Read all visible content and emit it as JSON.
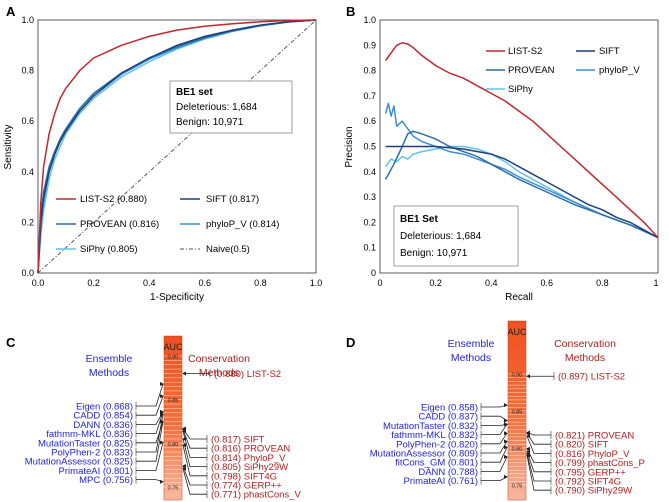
{
  "chart_data": [
    {
      "id": "A",
      "panel_label": "A",
      "type": "line",
      "title": "",
      "xlabel": "1-Specificity",
      "ylabel": "Sensitivity",
      "xlim": [
        0,
        1
      ],
      "ylim": [
        0,
        1
      ],
      "xticks": [
        "0.0",
        "0.2",
        "0.4",
        "0.6",
        "0.8",
        "1.0"
      ],
      "yticks": [
        "0.0",
        "0.2",
        "0.4",
        "0.6",
        "0.8",
        "1.0"
      ],
      "grid": false,
      "infobox": {
        "title": "BE1 set",
        "line1": "Deleterious: 1,684",
        "line2": "Benign: 10,971"
      },
      "series": [
        {
          "name": "LIST-S2 (0.880)",
          "color": "#c0282d",
          "dash": "",
          "x": [
            0,
            0.01,
            0.02,
            0.04,
            0.06,
            0.08,
            0.1,
            0.15,
            0.2,
            0.3,
            0.4,
            0.5,
            0.6,
            0.7,
            0.8,
            0.9,
            1.0
          ],
          "y": [
            0,
            0.28,
            0.42,
            0.55,
            0.63,
            0.69,
            0.73,
            0.8,
            0.85,
            0.9,
            0.935,
            0.96,
            0.975,
            0.985,
            0.993,
            0.998,
            1.0
          ]
        },
        {
          "name": "SIFT (0.817)",
          "color": "#1f3f7a",
          "dash": "",
          "x": [
            0,
            0.01,
            0.02,
            0.04,
            0.06,
            0.08,
            0.1,
            0.15,
            0.2,
            0.3,
            0.4,
            0.5,
            0.6,
            0.7,
            0.8,
            0.9,
            1.0
          ],
          "y": [
            0,
            0.2,
            0.3,
            0.4,
            0.47,
            0.52,
            0.56,
            0.64,
            0.7,
            0.79,
            0.85,
            0.9,
            0.935,
            0.96,
            0.98,
            0.993,
            1.0
          ]
        },
        {
          "name": "PROVEAN (0.816)",
          "color": "#2e6da4",
          "dash": "",
          "x": [
            0,
            0.01,
            0.02,
            0.04,
            0.06,
            0.08,
            0.1,
            0.15,
            0.2,
            0.3,
            0.4,
            0.5,
            0.6,
            0.7,
            0.8,
            0.9,
            1.0
          ],
          "y": [
            0,
            0.22,
            0.32,
            0.42,
            0.48,
            0.53,
            0.57,
            0.65,
            0.71,
            0.79,
            0.85,
            0.895,
            0.93,
            0.958,
            0.978,
            0.992,
            1.0
          ]
        },
        {
          "name": "phyloP_V (0.814)",
          "color": "#3a8fd8",
          "dash": "",
          "x": [
            0,
            0.01,
            0.02,
            0.04,
            0.06,
            0.08,
            0.1,
            0.15,
            0.2,
            0.3,
            0.4,
            0.5,
            0.6,
            0.7,
            0.8,
            0.9,
            1.0
          ],
          "y": [
            0,
            0.18,
            0.28,
            0.4,
            0.47,
            0.52,
            0.56,
            0.64,
            0.7,
            0.785,
            0.845,
            0.89,
            0.928,
            0.956,
            0.977,
            0.992,
            1.0
          ]
        },
        {
          "name": "SiPhy (0.805)",
          "color": "#62c3ea",
          "dash": "",
          "x": [
            0,
            0.01,
            0.02,
            0.04,
            0.06,
            0.08,
            0.1,
            0.15,
            0.2,
            0.3,
            0.4,
            0.5,
            0.6,
            0.7,
            0.8,
            0.9,
            1.0
          ],
          "y": [
            0,
            0.15,
            0.25,
            0.37,
            0.45,
            0.5,
            0.55,
            0.63,
            0.69,
            0.775,
            0.835,
            0.885,
            0.925,
            0.955,
            0.977,
            0.992,
            1.0
          ]
        },
        {
          "name": "Naive(0.5)",
          "color": "#555555",
          "dash": "4,2,1,2",
          "x": [
            0,
            1
          ],
          "y": [
            0,
            1
          ]
        }
      ]
    },
    {
      "id": "B",
      "panel_label": "B",
      "type": "line",
      "title": "",
      "xlabel": "Recall",
      "ylabel": "Precision",
      "xlim": [
        0,
        1
      ],
      "ylim": [
        0,
        1
      ],
      "xticks": [
        "0",
        "0.2",
        "0.4",
        "0.6",
        "0.8",
        "1"
      ],
      "yticks": [
        "0",
        "0.1",
        "0.2",
        "0.3",
        "0.4",
        "0.5",
        "0.6",
        "0.7",
        "0.8",
        "0.9",
        "1.0"
      ],
      "grid": false,
      "infobox": {
        "title": "BE1 Set",
        "line1": "Deleterious: 1,684",
        "line2": "Benign: 10,971"
      },
      "series": [
        {
          "name": "LIST-S2",
          "color": "#c0282d",
          "dash": "",
          "x": [
            0.02,
            0.04,
            0.06,
            0.08,
            0.1,
            0.12,
            0.15,
            0.2,
            0.25,
            0.3,
            0.35,
            0.4,
            0.45,
            0.5,
            0.55,
            0.6,
            0.65,
            0.7,
            0.75,
            0.8,
            0.85,
            0.9,
            0.95,
            1.0
          ],
          "y": [
            0.84,
            0.87,
            0.9,
            0.91,
            0.905,
            0.89,
            0.86,
            0.82,
            0.79,
            0.77,
            0.74,
            0.71,
            0.68,
            0.64,
            0.6,
            0.55,
            0.5,
            0.45,
            0.4,
            0.35,
            0.3,
            0.25,
            0.2,
            0.14
          ]
        },
        {
          "name": "SIFT",
          "color": "#1f3f7a",
          "dash": "",
          "x": [
            0.02,
            0.05,
            0.1,
            0.15,
            0.2,
            0.3,
            0.4,
            0.45,
            0.5,
            0.55,
            0.6,
            0.65,
            0.7,
            0.75,
            0.8,
            0.85,
            0.9,
            0.95,
            1.0
          ],
          "y": [
            0.5,
            0.5,
            0.5,
            0.5,
            0.5,
            0.49,
            0.47,
            0.45,
            0.42,
            0.39,
            0.36,
            0.33,
            0.3,
            0.27,
            0.25,
            0.22,
            0.2,
            0.17,
            0.14
          ]
        },
        {
          "name": "PROVEAN",
          "color": "#2e6da4",
          "dash": "",
          "x": [
            0.02,
            0.05,
            0.08,
            0.1,
            0.12,
            0.15,
            0.2,
            0.25,
            0.3,
            0.35,
            0.4,
            0.45,
            0.5,
            0.6,
            0.7,
            0.8,
            0.9,
            1.0
          ],
          "y": [
            0.37,
            0.43,
            0.5,
            0.55,
            0.56,
            0.55,
            0.53,
            0.5,
            0.48,
            0.46,
            0.43,
            0.4,
            0.37,
            0.32,
            0.27,
            0.23,
            0.19,
            0.14
          ]
        },
        {
          "name": "phyloP_V",
          "color": "#3a8fd8",
          "dash": "",
          "x": [
            0.02,
            0.03,
            0.04,
            0.05,
            0.06,
            0.08,
            0.1,
            0.12,
            0.15,
            0.2,
            0.25,
            0.3,
            0.35,
            0.4,
            0.45,
            0.5,
            0.6,
            0.7,
            0.8,
            0.9,
            1.0
          ],
          "y": [
            0.63,
            0.67,
            0.62,
            0.66,
            0.58,
            0.6,
            0.57,
            0.54,
            0.52,
            0.5,
            0.48,
            0.47,
            0.45,
            0.43,
            0.41,
            0.38,
            0.33,
            0.28,
            0.23,
            0.19,
            0.14
          ]
        },
        {
          "name": "SiPhy",
          "color": "#62c3ea",
          "dash": "",
          "x": [
            0.02,
            0.04,
            0.06,
            0.08,
            0.1,
            0.12,
            0.15,
            0.2,
            0.25,
            0.3,
            0.35,
            0.4,
            0.45,
            0.5,
            0.6,
            0.7,
            0.8,
            0.9,
            1.0
          ],
          "y": [
            0.42,
            0.45,
            0.44,
            0.46,
            0.45,
            0.47,
            0.48,
            0.49,
            0.5,
            0.5,
            0.49,
            0.47,
            0.44,
            0.4,
            0.34,
            0.28,
            0.23,
            0.19,
            0.14
          ]
        }
      ]
    },
    {
      "id": "C",
      "panel_label": "C",
      "type": "bar",
      "title": "AUC",
      "ylim": [
        0.75,
        0.9
      ],
      "ticks": [
        "0.90",
        "0.85",
        "0.80",
        "0.75"
      ],
      "left_header": [
        "Ensemble",
        "Methods"
      ],
      "right_header": [
        "Conservation",
        "Methods"
      ],
      "left_color": "#2424d8",
      "right_color": "#b02020",
      "left": [
        {
          "label": "Eigen (0.868)",
          "value": 0.868
        },
        {
          "label": "CADD (0.854)",
          "value": 0.854
        },
        {
          "label": "DANN (0.836)",
          "value": 0.836
        },
        {
          "label": "fathmm-MKL (0.836)",
          "value": 0.836
        },
        {
          "label": "MutationTaster (0.825)",
          "value": 0.825
        },
        {
          "label": "PolyPhen-2 (0.833)",
          "value": 0.833
        },
        {
          "label": "MutationAssessor (0.825)",
          "value": 0.825
        },
        {
          "label": "PrimateAI (0.801)",
          "value": 0.801
        },
        {
          "label": "MPC (0.756)",
          "value": 0.756
        }
      ],
      "right_top": [
        {
          "label": "(0.880) LIST-S2",
          "value": 0.88
        }
      ],
      "right": [
        {
          "label": "(0.817) SIFT",
          "value": 0.817
        },
        {
          "label": "(0.816) PROVEAN",
          "value": 0.816
        },
        {
          "label": "(0.814) PhyloP_V",
          "value": 0.814
        },
        {
          "label": "(0.805) SiPhy29W",
          "value": 0.805
        },
        {
          "label": "(0.798) SIFT4G",
          "value": 0.798
        },
        {
          "label": "(0.774) GERP++",
          "value": 0.774
        },
        {
          "label": "(0.771) phastCons_V",
          "value": 0.771
        }
      ]
    },
    {
      "id": "D",
      "panel_label": "D",
      "type": "bar",
      "title": "AUC",
      "ylim": [
        0.75,
        0.9
      ],
      "ticks": [
        "0.90",
        "0.85",
        "0.80",
        "0.75"
      ],
      "left_header": [
        "Ensemble",
        "Methods"
      ],
      "right_header": [
        "Conservation",
        "Methods"
      ],
      "left_color": "#2424d8",
      "right_color": "#b02020",
      "left": [
        {
          "label": "Eigen (0.858)",
          "value": 0.858
        },
        {
          "label": "CADD (0.837)",
          "value": 0.837
        },
        {
          "label": "MutationTaster (0.832)",
          "value": 0.832
        },
        {
          "label": "fathmm-MKL (0.832)",
          "value": 0.832
        },
        {
          "label": "PolyPhen-2 (0.820)",
          "value": 0.82
        },
        {
          "label": "MutationAssessor (0.809)",
          "value": 0.809
        },
        {
          "label": "fitCons_GM (0.801)",
          "value": 0.801
        },
        {
          "label": "DANN (0.788)",
          "value": 0.788
        },
        {
          "label": "PrimateAI (0.761)",
          "value": 0.761
        }
      ],
      "right_top": [
        {
          "label": "(0.897) LIST-S2",
          "value": 0.897
        }
      ],
      "right": [
        {
          "label": "(0.821) PROVEAN",
          "value": 0.821
        },
        {
          "label": "(0.820) SIFT",
          "value": 0.82
        },
        {
          "label": "(0.816) PhyloP_V",
          "value": 0.816
        },
        {
          "label": "(0.799) phastCons_P",
          "value": 0.799
        },
        {
          "label": "(0.795) GERP++",
          "value": 0.795
        },
        {
          "label": "(0.792) SIFT4G",
          "value": 0.792
        },
        {
          "label": "(0.790) SiPhy29W",
          "value": 0.79
        }
      ]
    }
  ]
}
